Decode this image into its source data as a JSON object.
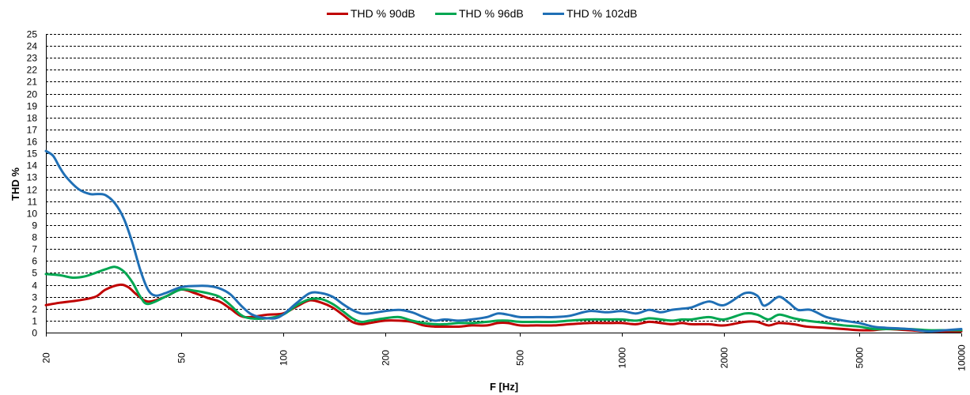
{
  "chart_data": {
    "type": "line",
    "title": "",
    "xlabel": "F [Hz]",
    "ylabel": "THD %",
    "x_scale": "log",
    "xlim": [
      20,
      10000
    ],
    "ylim": [
      0,
      25
    ],
    "x_ticks": [
      20,
      50,
      100,
      200,
      500,
      1000,
      2000,
      5000,
      10000
    ],
    "y_ticks": [
      0,
      1,
      2,
      3,
      4,
      5,
      6,
      7,
      8,
      9,
      10,
      11,
      12,
      13,
      14,
      15,
      16,
      17,
      18,
      19,
      20,
      21,
      22,
      23,
      24,
      25
    ],
    "grid": "horizontal dashed",
    "legend_position": "top",
    "series": [
      {
        "name": "THD % 90dB",
        "color": "#C00000",
        "points": [
          [
            20,
            2.3
          ],
          [
            22,
            2.5
          ],
          [
            25,
            2.7
          ],
          [
            28,
            3.0
          ],
          [
            30,
            3.6
          ],
          [
            33,
            4.0
          ],
          [
            35,
            3.8
          ],
          [
            37,
            3.2
          ],
          [
            40,
            2.6
          ],
          [
            45,
            3.0
          ],
          [
            50,
            3.6
          ],
          [
            55,
            3.3
          ],
          [
            60,
            2.9
          ],
          [
            65,
            2.6
          ],
          [
            70,
            2.0
          ],
          [
            75,
            1.4
          ],
          [
            80,
            1.3
          ],
          [
            90,
            1.5
          ],
          [
            100,
            1.6
          ],
          [
            110,
            2.2
          ],
          [
            120,
            2.7
          ],
          [
            130,
            2.5
          ],
          [
            140,
            2.1
          ],
          [
            150,
            1.5
          ],
          [
            160,
            0.9
          ],
          [
            170,
            0.7
          ],
          [
            180,
            0.8
          ],
          [
            200,
            1.0
          ],
          [
            220,
            1.0
          ],
          [
            240,
            0.9
          ],
          [
            260,
            0.6
          ],
          [
            280,
            0.5
          ],
          [
            300,
            0.5
          ],
          [
            330,
            0.5
          ],
          [
            360,
            0.6
          ],
          [
            400,
            0.6
          ],
          [
            430,
            0.8
          ],
          [
            460,
            0.8
          ],
          [
            500,
            0.6
          ],
          [
            560,
            0.6
          ],
          [
            630,
            0.6
          ],
          [
            700,
            0.7
          ],
          [
            800,
            0.8
          ],
          [
            900,
            0.8
          ],
          [
            1000,
            0.8
          ],
          [
            1100,
            0.7
          ],
          [
            1200,
            0.9
          ],
          [
            1300,
            0.8
          ],
          [
            1400,
            0.7
          ],
          [
            1500,
            0.8
          ],
          [
            1600,
            0.7
          ],
          [
            1800,
            0.7
          ],
          [
            2000,
            0.6
          ],
          [
            2300,
            0.9
          ],
          [
            2500,
            0.9
          ],
          [
            2700,
            0.6
          ],
          [
            2900,
            0.8
          ],
          [
            3200,
            0.7
          ],
          [
            3500,
            0.5
          ],
          [
            4000,
            0.4
          ],
          [
            4500,
            0.3
          ],
          [
            5000,
            0.2
          ],
          [
            5500,
            0.2
          ],
          [
            6000,
            0.3
          ],
          [
            7000,
            0.2
          ],
          [
            8000,
            0.1
          ],
          [
            9000,
            0.1
          ],
          [
            10000,
            0.1
          ]
        ]
      },
      {
        "name": "THD % 96dB",
        "color": "#00A651",
        "points": [
          [
            20,
            4.9
          ],
          [
            22,
            4.8
          ],
          [
            24,
            4.6
          ],
          [
            26,
            4.7
          ],
          [
            28,
            5.0
          ],
          [
            30,
            5.3
          ],
          [
            32,
            5.5
          ],
          [
            34,
            5.1
          ],
          [
            36,
            4.2
          ],
          [
            38,
            3.0
          ],
          [
            40,
            2.4
          ],
          [
            45,
            3.0
          ],
          [
            50,
            3.6
          ],
          [
            55,
            3.5
          ],
          [
            60,
            3.3
          ],
          [
            65,
            3.0
          ],
          [
            70,
            2.3
          ],
          [
            75,
            1.5
          ],
          [
            80,
            1.2
          ],
          [
            90,
            1.2
          ],
          [
            100,
            1.5
          ],
          [
            110,
            2.3
          ],
          [
            120,
            2.8
          ],
          [
            130,
            2.8
          ],
          [
            140,
            2.4
          ],
          [
            150,
            1.8
          ],
          [
            160,
            1.2
          ],
          [
            170,
            0.9
          ],
          [
            180,
            1.0
          ],
          [
            200,
            1.2
          ],
          [
            220,
            1.3
          ],
          [
            240,
            1.0
          ],
          [
            260,
            0.8
          ],
          [
            280,
            0.7
          ],
          [
            300,
            0.7
          ],
          [
            330,
            0.8
          ],
          [
            360,
            0.8
          ],
          [
            400,
            0.9
          ],
          [
            430,
            1.0
          ],
          [
            460,
            1.0
          ],
          [
            500,
            0.9
          ],
          [
            560,
            0.9
          ],
          [
            630,
            0.9
          ],
          [
            700,
            1.0
          ],
          [
            800,
            1.1
          ],
          [
            900,
            1.1
          ],
          [
            1000,
            1.1
          ],
          [
            1100,
            1.0
          ],
          [
            1200,
            1.2
          ],
          [
            1300,
            1.1
          ],
          [
            1400,
            1.0
          ],
          [
            1500,
            1.1
          ],
          [
            1600,
            1.1
          ],
          [
            1800,
            1.3
          ],
          [
            2000,
            1.1
          ],
          [
            2300,
            1.6
          ],
          [
            2500,
            1.5
          ],
          [
            2700,
            1.1
          ],
          [
            2900,
            1.5
          ],
          [
            3200,
            1.2
          ],
          [
            3500,
            1.0
          ],
          [
            4000,
            0.8
          ],
          [
            4500,
            0.6
          ],
          [
            5000,
            0.5
          ],
          [
            5500,
            0.3
          ],
          [
            6000,
            0.3
          ],
          [
            7000,
            0.3
          ],
          [
            8000,
            0.2
          ],
          [
            9000,
            0.2
          ],
          [
            10000,
            0.2
          ]
        ]
      },
      {
        "name": "THD % 102dB",
        "color": "#1F6FB5",
        "points": [
          [
            20,
            15.2
          ],
          [
            21,
            14.8
          ],
          [
            22,
            13.8
          ],
          [
            23,
            13.0
          ],
          [
            25,
            12.0
          ],
          [
            27,
            11.6
          ],
          [
            28.5,
            11.6
          ],
          [
            30,
            11.5
          ],
          [
            32,
            10.8
          ],
          [
            34,
            9.5
          ],
          [
            36,
            7.5
          ],
          [
            38,
            5.2
          ],
          [
            40,
            3.6
          ],
          [
            42,
            3.1
          ],
          [
            45,
            3.3
          ],
          [
            50,
            3.8
          ],
          [
            55,
            3.9
          ],
          [
            60,
            3.9
          ],
          [
            65,
            3.7
          ],
          [
            70,
            3.2
          ],
          [
            75,
            2.3
          ],
          [
            80,
            1.6
          ],
          [
            85,
            1.3
          ],
          [
            90,
            1.2
          ],
          [
            95,
            1.2
          ],
          [
            100,
            1.5
          ],
          [
            110,
            2.5
          ],
          [
            120,
            3.3
          ],
          [
            130,
            3.3
          ],
          [
            140,
            3.0
          ],
          [
            150,
            2.4
          ],
          [
            160,
            1.9
          ],
          [
            170,
            1.6
          ],
          [
            180,
            1.6
          ],
          [
            200,
            1.8
          ],
          [
            220,
            1.9
          ],
          [
            240,
            1.7
          ],
          [
            260,
            1.3
          ],
          [
            280,
            1.0
          ],
          [
            300,
            1.1
          ],
          [
            330,
            1.0
          ],
          [
            360,
            1.1
          ],
          [
            400,
            1.3
          ],
          [
            430,
            1.6
          ],
          [
            460,
            1.5
          ],
          [
            500,
            1.3
          ],
          [
            560,
            1.3
          ],
          [
            630,
            1.3
          ],
          [
            700,
            1.4
          ],
          [
            800,
            1.8
          ],
          [
            900,
            1.7
          ],
          [
            1000,
            1.8
          ],
          [
            1100,
            1.6
          ],
          [
            1200,
            1.9
          ],
          [
            1300,
            1.7
          ],
          [
            1400,
            1.9
          ],
          [
            1500,
            2.0
          ],
          [
            1600,
            2.1
          ],
          [
            1800,
            2.6
          ],
          [
            2000,
            2.3
          ],
          [
            2300,
            3.3
          ],
          [
            2500,
            3.1
          ],
          [
            2600,
            2.3
          ],
          [
            2700,
            2.4
          ],
          [
            2900,
            3.0
          ],
          [
            3100,
            2.5
          ],
          [
            3300,
            1.9
          ],
          [
            3600,
            1.9
          ],
          [
            4000,
            1.3
          ],
          [
            4500,
            1.0
          ],
          [
            5000,
            0.8
          ],
          [
            5500,
            0.5
          ],
          [
            6000,
            0.4
          ],
          [
            7000,
            0.3
          ],
          [
            8000,
            0.1
          ],
          [
            9000,
            0.2
          ],
          [
            10000,
            0.3
          ]
        ]
      }
    ]
  }
}
